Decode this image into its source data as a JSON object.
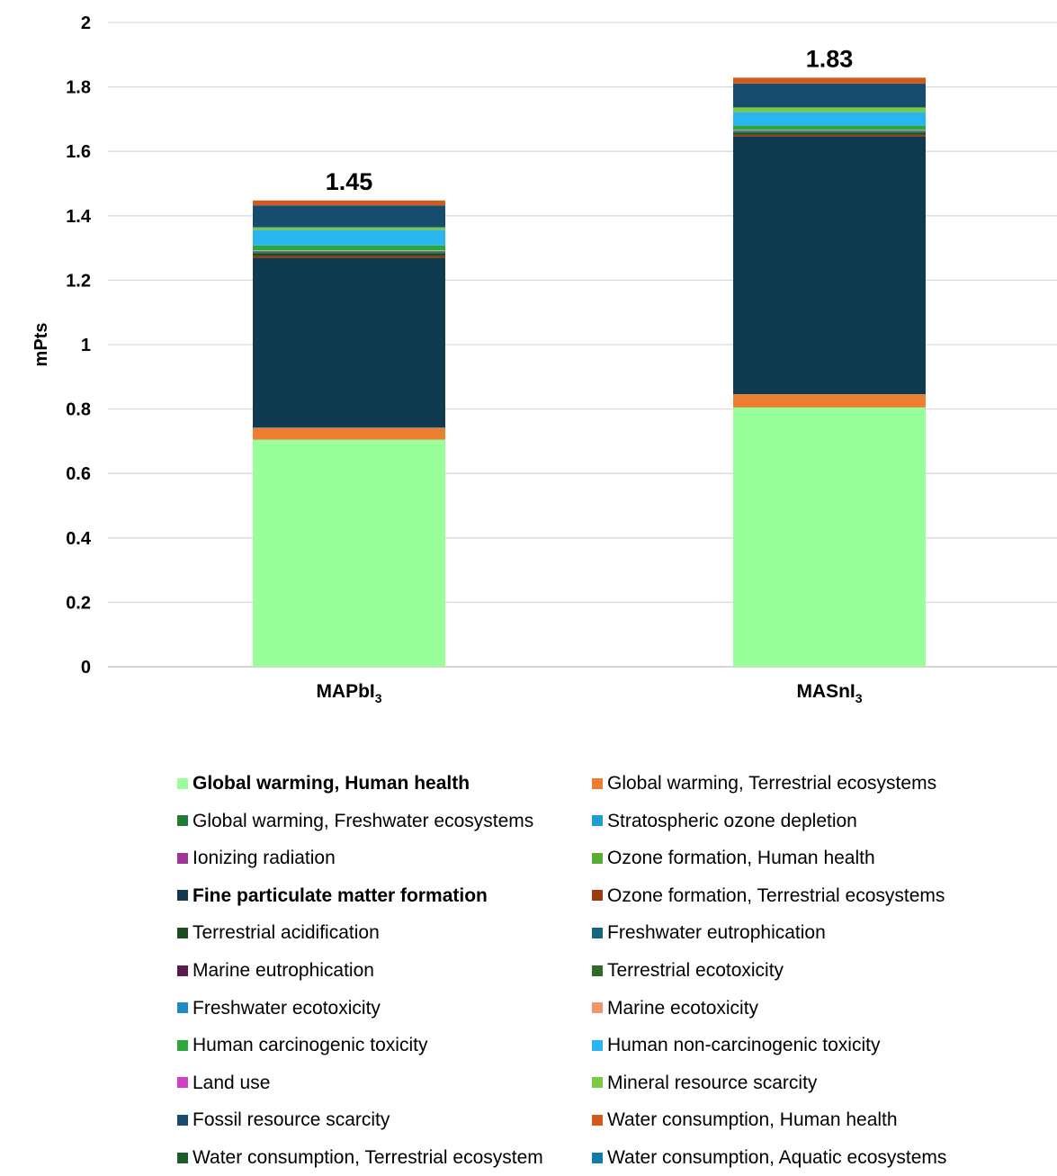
{
  "chart_data": {
    "type": "bar",
    "stacked": true,
    "ylabel": "mPts",
    "ylim": [
      0,
      2
    ],
    "yticks": [
      "0",
      "0.2",
      "0.4",
      "0.6",
      "0.8",
      "1",
      "1.2",
      "1.4",
      "1.6",
      "1.8",
      "2"
    ],
    "grid": true,
    "legend_position": "bottom",
    "categories": [
      {
        "base": "MAPbI",
        "sub": "3"
      },
      {
        "base": "MASnI",
        "sub": "3"
      }
    ],
    "totals": [
      "1.45",
      "1.83"
    ],
    "series": [
      {
        "name": "Global warming, Human health",
        "color": "#99ff99",
        "bold": true,
        "values": [
          0.705,
          0.805
        ]
      },
      {
        "name": "Global warming, Terrestrial ecosystems",
        "color": "#ed7d31",
        "bold": false,
        "values": [
          0.036,
          0.04
        ]
      },
      {
        "name": "Global warming, Freshwater ecosystems",
        "color": "#1e7a34",
        "bold": false,
        "values": [
          0.0002,
          0.0002
        ]
      },
      {
        "name": "Stratospheric ozone depletion",
        "color": "#1f9cd6",
        "bold": false,
        "values": [
          0.0003,
          0.0003
        ]
      },
      {
        "name": "Ionizing radiation",
        "color": "#a2339b",
        "bold": false,
        "values": [
          0.0003,
          0.0003
        ]
      },
      {
        "name": "Ozone formation, Human health",
        "color": "#5aad32",
        "bold": false,
        "values": [
          0.0005,
          0.0005
        ]
      },
      {
        "name": "Fine particulate matter formation",
        "color": "#0f3a4f",
        "bold": true,
        "values": [
          0.527,
          0.8
        ]
      },
      {
        "name": "Ozone formation, Terrestrial ecosystems",
        "color": "#9c3c0c",
        "bold": false,
        "values": [
          0.006,
          0.005
        ]
      },
      {
        "name": "Terrestrial acidification",
        "color": "#1d4d1f",
        "bold": false,
        "values": [
          0.009,
          0.007
        ]
      },
      {
        "name": "Freshwater eutrophication",
        "color": "#136580",
        "bold": false,
        "values": [
          0.002,
          0.002
        ]
      },
      {
        "name": "Marine eutrophication",
        "color": "#5c1b4e",
        "bold": false,
        "values": [
          0.0005,
          0.0005
        ]
      },
      {
        "name": "Terrestrial ecotoxicity",
        "color": "#2e6b24",
        "bold": false,
        "values": [
          0.002,
          0.002
        ]
      },
      {
        "name": "Freshwater ecotoxicity",
        "color": "#1f8ac0",
        "bold": false,
        "values": [
          0.002,
          0.002
        ]
      },
      {
        "name": "Marine ecotoxicity",
        "color": "#f0946a",
        "bold": false,
        "values": [
          0.002,
          0.002
        ]
      },
      {
        "name": "Human carcinogenic toxicity",
        "color": "#2ea63c",
        "bold": false,
        "values": [
          0.015,
          0.013
        ]
      },
      {
        "name": "Human non-carcinogenic toxicity",
        "color": "#29b6ef",
        "bold": false,
        "values": [
          0.048,
          0.042
        ]
      },
      {
        "name": "Land use",
        "color": "#d43fc2",
        "bold": false,
        "values": [
          0.0005,
          0.0005
        ]
      },
      {
        "name": "Mineral resource scarcity",
        "color": "#7ac943",
        "bold": false,
        "values": [
          0.008,
          0.014
        ]
      },
      {
        "name": "Fossil resource scarcity",
        "color": "#164d6e",
        "bold": false,
        "values": [
          0.068,
          0.074
        ]
      },
      {
        "name": "Water consumption, Human health",
        "color": "#d45a1c",
        "bold": false,
        "values": [
          0.015,
          0.018
        ]
      },
      {
        "name": "Water consumption, Terrestrial ecosystem",
        "color": "#1b5e2a",
        "bold": false,
        "values": [
          0.0002,
          0.0002
        ]
      },
      {
        "name": "Water consumption, Aquatic ecosystems",
        "color": "#117da6",
        "bold": false,
        "values": [
          0.0001,
          0.0001
        ]
      }
    ]
  }
}
